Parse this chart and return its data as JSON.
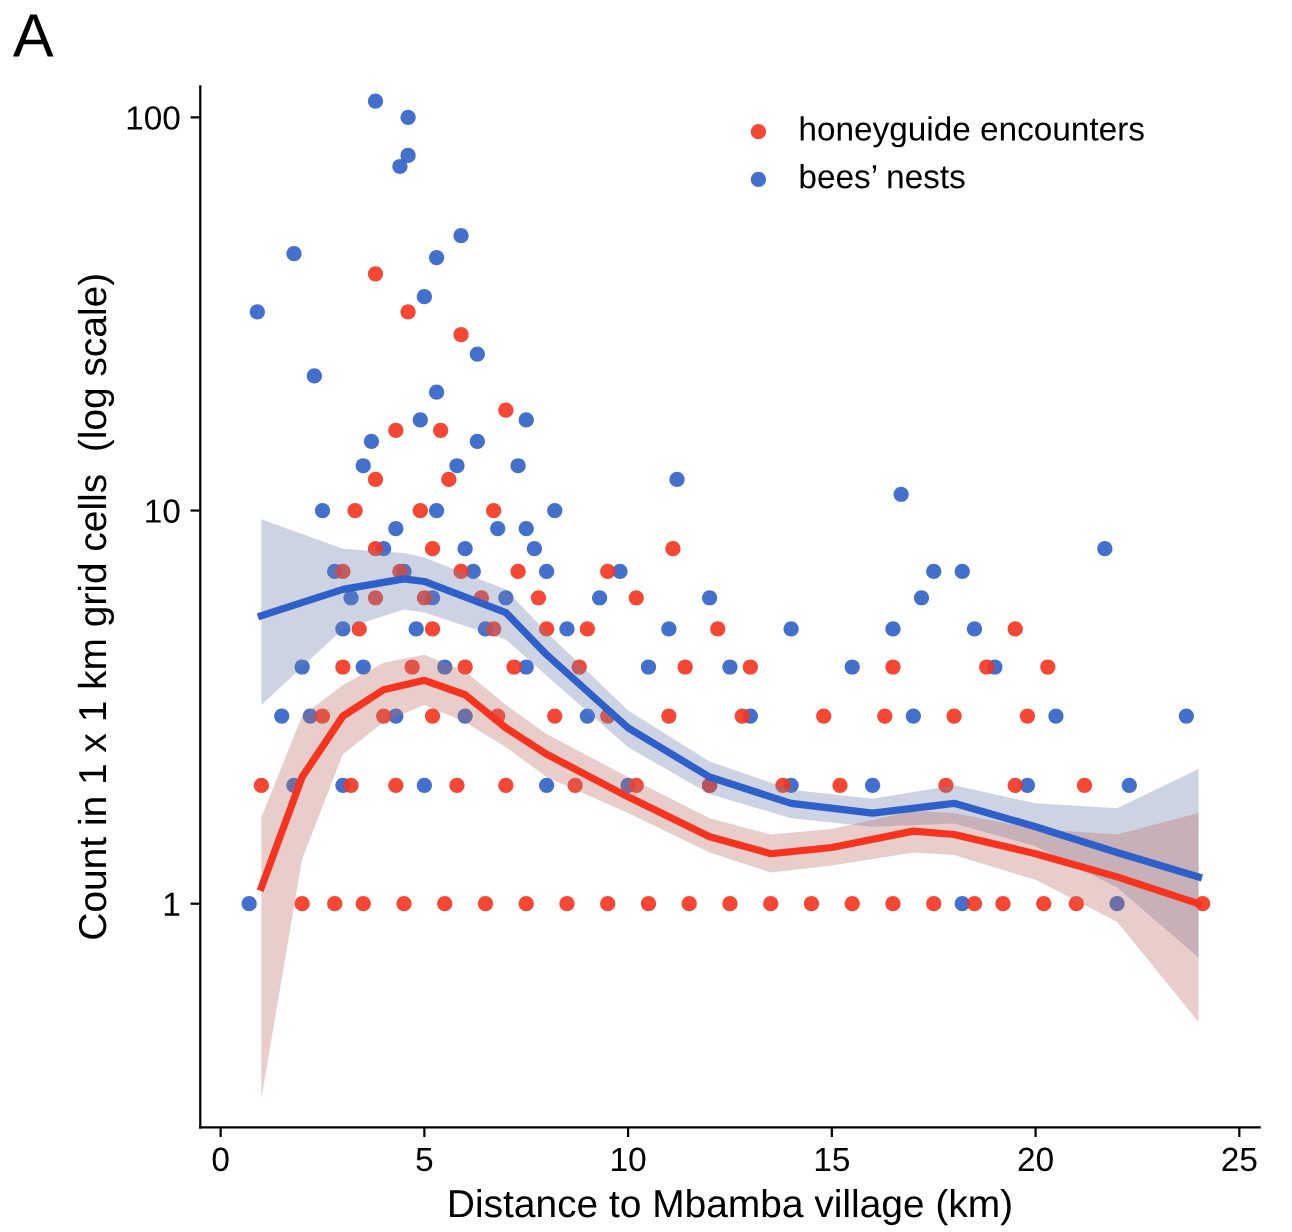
{
  "chart_data": {
    "type": "scatter",
    "xlabel": "Distance to Mbamba village (km)",
    "ylabel": "Count in 1 x 1 km grid cells  (log scale)",
    "annotations": [
      "A"
    ],
    "xlim": [
      -0.5,
      25.5
    ],
    "xticks": [
      0,
      5,
      10,
      15,
      20,
      25
    ],
    "ylim": [
      0.27,
      120
    ],
    "yticks": [
      1,
      10,
      100
    ],
    "log": "y",
    "grid": false,
    "legend": "top right",
    "series": [
      {
        "name": "bees’ nests",
        "color": "#2f5fc8",
        "marker": "circle",
        "x": [
          0.7,
          18.2,
          22,
          1.8,
          3.0,
          5,
          8,
          10,
          12,
          14,
          16,
          19.8,
          22.3,
          1.5,
          2.2,
          4.3,
          6,
          9,
          13,
          17,
          20.5,
          23.7,
          2,
          3.5,
          5.5,
          7.5,
          10.5,
          12.5,
          15.5,
          19,
          3,
          4.8,
          6.5,
          8.5,
          11,
          14,
          16.5,
          18.5,
          3.2,
          5.2,
          7,
          9.3,
          12,
          17.2,
          2.8,
          4.5,
          6.2,
          8,
          9.8,
          17.5,
          18.2,
          4,
          6,
          7.7,
          21.7,
          4.3,
          6.8,
          7.5,
          2.5,
          5.3,
          8.2,
          16.7,
          11.2,
          3.5,
          5.8,
          7.3,
          3.7,
          6.3,
          4.9,
          7.5,
          5.3,
          2.3,
          6.3,
          0.9,
          5.0,
          1.8,
          5.3,
          5.9,
          4.4,
          4.6,
          4.6,
          3.8
        ],
        "values": [
          1,
          1,
          1,
          2,
          2,
          2,
          2,
          2,
          2,
          2,
          2,
          2,
          2,
          3,
          3,
          3,
          3,
          3,
          3,
          3,
          3,
          3,
          4,
          4,
          4,
          4,
          4,
          4,
          4,
          4,
          5,
          5,
          5,
          5,
          5,
          5,
          5,
          5,
          6,
          6,
          6,
          6,
          6,
          6,
          7,
          7,
          7,
          7,
          7,
          7,
          7,
          8,
          8,
          8,
          8,
          9,
          9,
          9,
          10,
          10,
          10,
          11,
          12,
          13,
          13,
          13,
          15,
          15,
          17,
          17,
          20,
          22,
          25,
          32,
          35,
          45,
          44,
          50,
          75,
          80,
          100,
          110
        ]
      },
      {
        "name": "honeyguide encounters",
        "color": "#f5331f",
        "marker": "circle",
        "x": [
          2,
          2.8,
          3.5,
          4.5,
          5.5,
          6.5,
          7.5,
          8.5,
          9.5,
          10.5,
          11.5,
          12.5,
          13.5,
          14.5,
          15.5,
          16.5,
          17.5,
          18.5,
          19.2,
          20.2,
          21,
          24.1,
          1,
          3.2,
          4.3,
          5.8,
          7,
          8.7,
          10.2,
          12,
          13.8,
          15.2,
          17.8,
          19.5,
          21.2,
          2.5,
          4,
          5.2,
          6.8,
          8.2,
          9.5,
          11,
          12.8,
          14.8,
          16.3,
          18,
          19.8,
          3,
          4.7,
          6,
          7.2,
          8.8,
          11.4,
          13,
          16.5,
          18.8,
          20.3,
          3.4,
          5.2,
          6.7,
          8,
          9,
          12.2,
          19.5,
          3.8,
          5,
          6.4,
          7.8,
          10.2,
          3,
          4.4,
          5.9,
          7.3,
          9.5,
          3.8,
          5.2,
          3.3,
          4.9,
          6.7,
          11.1,
          3.8,
          5.6,
          4.3,
          5.4,
          7.0,
          5.9,
          4.6,
          3.8
        ],
        "values": [
          1,
          1,
          1,
          1,
          1,
          1,
          1,
          1,
          1,
          1,
          1,
          1,
          1,
          1,
          1,
          1,
          1,
          1,
          1,
          1,
          1,
          1,
          2,
          2,
          2,
          2,
          2,
          2,
          2,
          2,
          2,
          2,
          2,
          2,
          2,
          3,
          3,
          3,
          3,
          3,
          3,
          3,
          3,
          3,
          3,
          3,
          3,
          4,
          4,
          4,
          4,
          4,
          4,
          4,
          4,
          4,
          4,
          5,
          5,
          5,
          5,
          5,
          5,
          5,
          6,
          6,
          6,
          6,
          6,
          7,
          7,
          7,
          7,
          7,
          8,
          8,
          10,
          10,
          10,
          8,
          12,
          12,
          16,
          16,
          18,
          28,
          32,
          40
        ]
      },
      {
        "type": "line",
        "color": "#2f5fc8",
        "line_style": "solid",
        "x": [
          1,
          3,
          4.5,
          5,
          7,
          8,
          10,
          12,
          14,
          16,
          18,
          20,
          22,
          24
        ],
        "values": [
          5.4,
          6.3,
          6.7,
          6.6,
          5.5,
          4.3,
          2.8,
          2.1,
          1.8,
          1.7,
          1.8,
          1.57,
          1.35,
          1.17
        ],
        "lower": [
          3.2,
          5.0,
          5.6,
          5.5,
          4.7,
          3.8,
          2.5,
          1.9,
          1.65,
          1.57,
          1.6,
          1.4,
          1.1,
          0.73
        ],
        "upper": [
          9.5,
          8.0,
          7.8,
          7.6,
          6.3,
          4.9,
          3.1,
          2.3,
          1.95,
          1.85,
          2.0,
          1.8,
          1.75,
          2.2
        ]
      },
      {
        "type": "line",
        "color": "#f5331f",
        "line_style": "solid",
        "x": [
          1,
          2,
          3,
          4,
          5,
          6,
          7,
          8,
          10,
          12,
          13.5,
          15,
          17,
          18,
          20,
          22,
          24
        ],
        "values": [
          1.1,
          2.1,
          3.0,
          3.5,
          3.7,
          3.4,
          2.8,
          2.4,
          1.87,
          1.48,
          1.34,
          1.39,
          1.53,
          1.5,
          1.34,
          1.17,
          1.0
        ],
        "lower": [
          0.32,
          1.3,
          2.4,
          2.9,
          3.2,
          2.9,
          2.5,
          2.1,
          1.7,
          1.35,
          1.2,
          1.25,
          1.35,
          1.33,
          1.15,
          0.9,
          0.5
        ],
        "upper": [
          1.66,
          3.0,
          3.6,
          4.1,
          4.3,
          3.9,
          3.2,
          2.7,
          2.1,
          1.65,
          1.5,
          1.55,
          1.72,
          1.7,
          1.55,
          1.5,
          1.7
        ]
      }
    ]
  }
}
